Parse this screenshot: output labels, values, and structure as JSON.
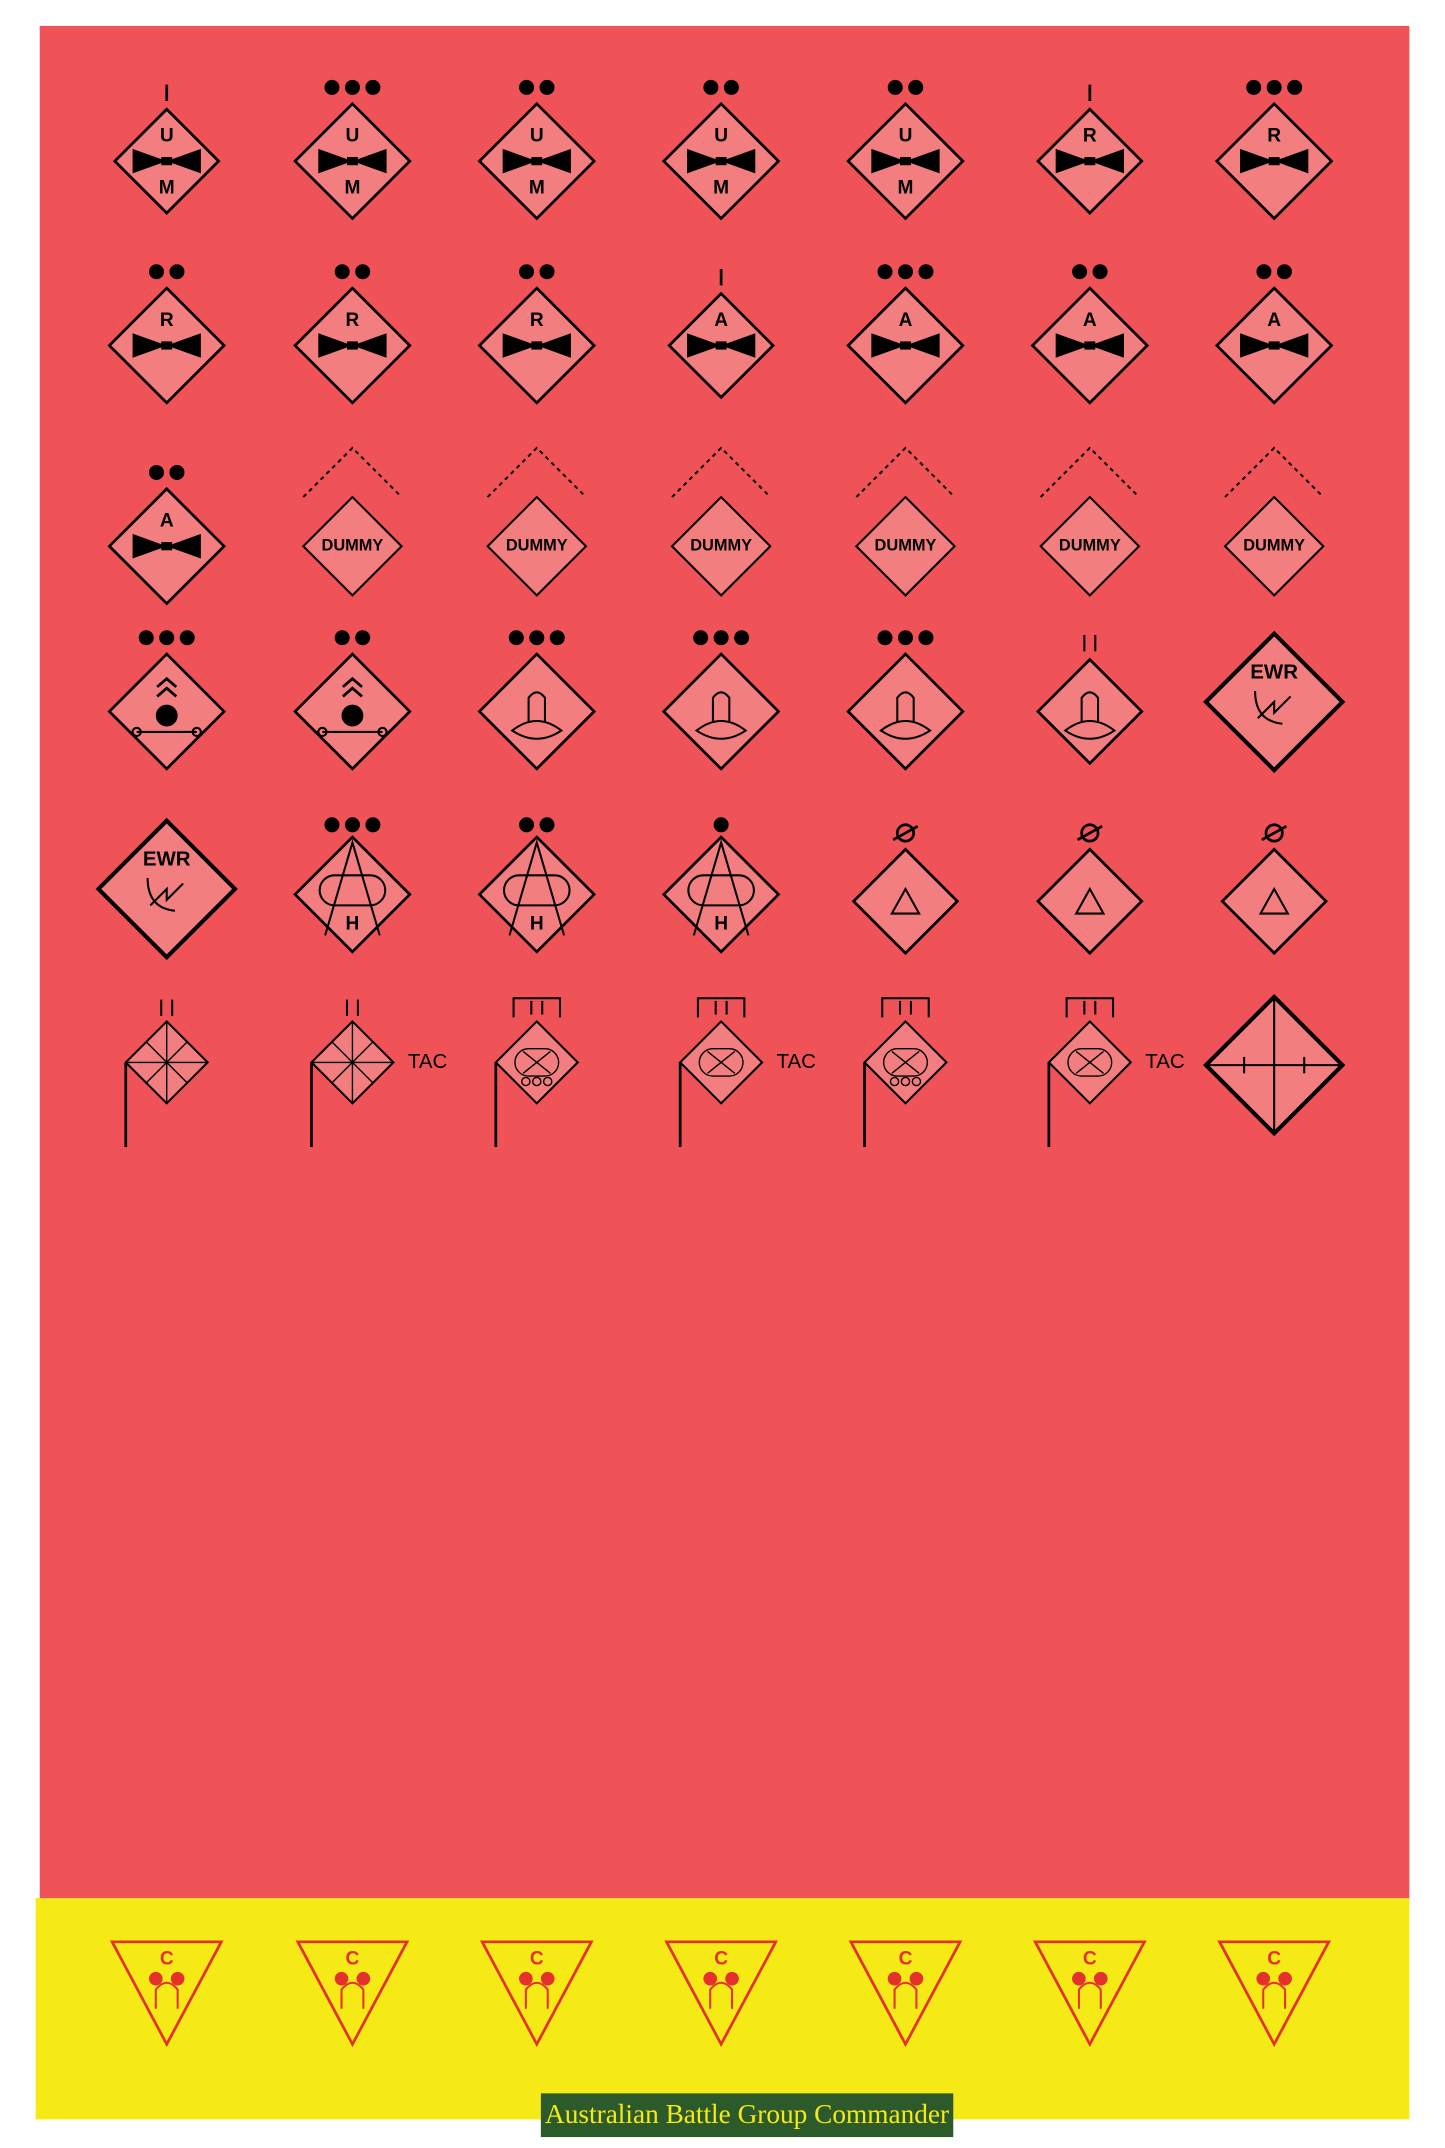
{
  "counters": [
    {
      "top": "U",
      "bottom": "M"
    },
    {
      "top": "U",
      "bottom": "M"
    },
    {
      "top": "U",
      "bottom": "M"
    },
    {
      "top": "U",
      "bottom": "M"
    },
    {
      "top": "U",
      "bottom": "M"
    },
    {
      "top": "R"
    },
    {
      "top": "R"
    },
    {
      "top": "R"
    },
    {
      "top": "R"
    },
    {
      "top": "R"
    },
    {
      "top": "A"
    },
    {
      "top": "A"
    },
    {
      "top": "A"
    },
    {
      "top": "A"
    },
    {
      "top": "A"
    },
    {
      "top": "DUMMY"
    },
    {
      "top": "DUMMY"
    },
    {
      "top": "DUMMY"
    },
    {
      "top": "DUMMY"
    },
    {
      "top": "DUMMY"
    },
    {
      "top": "DUMMY"
    },
    {},
    {},
    {},
    {},
    {},
    {},
    {
      "top": "EWR"
    },
    {
      "top": "EWR"
    },
    {
      "bottom": "H"
    },
    {
      "bottom": "H"
    },
    {
      "bottom": "H"
    },
    {},
    {},
    {},
    {},
    {
      "side": "TAC"
    },
    {},
    {
      "side": "TAC"
    },
    {},
    {
      "side": "TAC"
    },
    {}
  ],
  "markers": [
    "C",
    "C",
    "C",
    "C",
    "C",
    "C",
    "C"
  ],
  "footer": "Australian Battle Group  Commander"
}
